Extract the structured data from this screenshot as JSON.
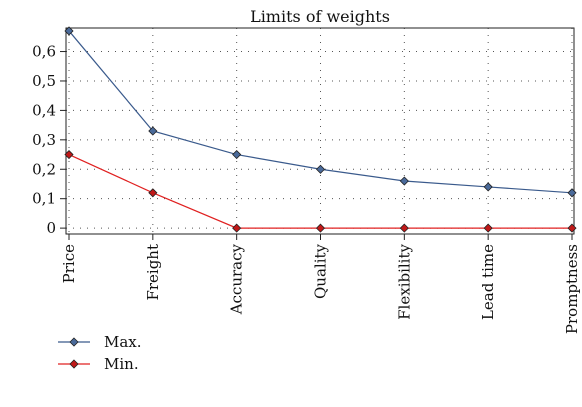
{
  "chart_data": {
    "type": "line",
    "title": "Limits of weights",
    "xlabel": "",
    "ylabel": "",
    "categories": [
      "Price",
      "Freight",
      "Accuracy",
      "Quality",
      "Flexibility",
      "Lead time",
      "Promptness"
    ],
    "series": [
      {
        "name": "Max.",
        "color": "#3a5a8c",
        "marker_fill": "#4a6a9a",
        "values": [
          0.67,
          0.33,
          0.25,
          0.2,
          0.16,
          0.14,
          0.12
        ]
      },
      {
        "name": "Min.",
        "color": "#e02020",
        "marker_fill": "#c01818",
        "values": [
          0.25,
          0.12,
          0.0,
          0.0,
          0.0,
          0.0,
          0.0
        ]
      }
    ],
    "ylim": [
      -0.02,
      0.68
    ],
    "yticks": [
      0,
      0.1,
      0.2,
      0.3,
      0.4,
      0.5,
      0.6
    ],
    "ytick_labels": [
      "0",
      "0,1",
      "0,2",
      "0,3",
      "0,4",
      "0,5",
      "0,6"
    ],
    "grid": true,
    "legend_position": "bottom-left"
  }
}
